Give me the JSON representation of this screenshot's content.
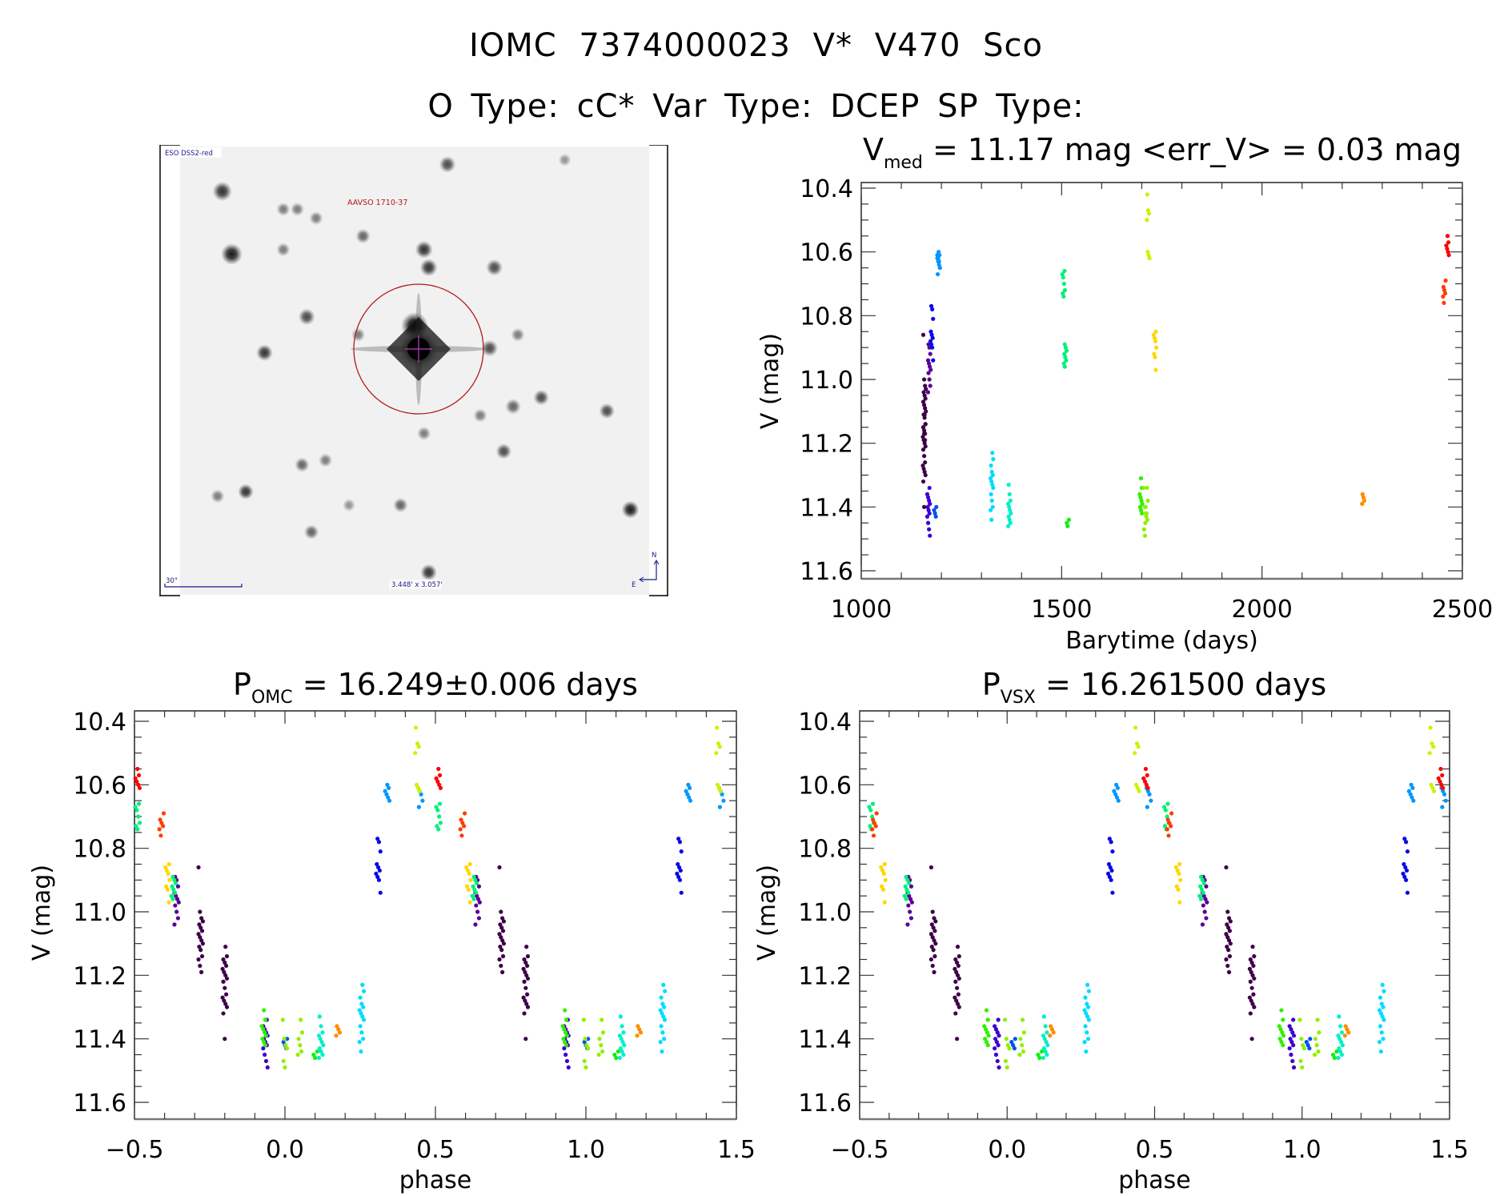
{
  "header": {
    "title": "IOMC 7374000023    V* V470 Sco",
    "subtitle": "O Type: cC*   Var Type: DCEP   SP Type:"
  },
  "finder_chart": {
    "survey_label": "ESO DSS2-red",
    "target_label": "AAVSO 1710-37",
    "scale_bar_label": "30\"",
    "field_size_label": "3.448' x 3.057'",
    "north_label": "N",
    "east_label": "E",
    "colors": {
      "annotation_blue": "#1a1a8c",
      "target_red": "#b01818",
      "crosshair": "#c040c0"
    }
  },
  "chart_data": [
    {
      "id": "lightcurve",
      "type": "scatter",
      "title_main": "V",
      "title_sub": "med",
      "title_rest": " = 11.17 mag <err_V> = 0.03 mag",
      "xlabel": "Barytime (days)",
      "ylabel": "V (mag)",
      "xlim": [
        1000,
        2500
      ],
      "ylim": [
        10.4,
        11.6
      ],
      "y_inverted": true,
      "xticks": [
        1000,
        1500,
        2000,
        2500
      ],
      "xtick_labels": [
        "1000",
        "1500",
        "2000",
        "2500"
      ],
      "yticks": [
        10.4,
        10.6,
        10.8,
        11.0,
        11.2,
        11.4,
        11.6
      ],
      "ytick_labels": [
        "10.4",
        "10.6",
        "10.8",
        "11.0",
        "11.2",
        "11.4",
        "11.6"
      ],
      "x_field": "t",
      "grid": false
    },
    {
      "id": "phase-omc",
      "type": "scatter",
      "title_main": "P",
      "title_sub": "OMC",
      "title_rest": " = 16.249±0.006 days",
      "xlabel": "phase",
      "ylabel": "V (mag)",
      "xlim": [
        -0.5,
        1.5
      ],
      "ylim": [
        10.4,
        11.6
      ],
      "y_inverted": true,
      "xticks": [
        -0.5,
        0.0,
        0.5,
        1.0,
        1.5
      ],
      "xtick_labels": [
        "−0.5",
        "0.0",
        "0.5",
        "1.0",
        "1.5"
      ],
      "yticks": [
        10.4,
        10.6,
        10.8,
        11.0,
        11.2,
        11.4,
        11.6
      ],
      "ytick_labels": [
        "10.4",
        "10.6",
        "10.8",
        "11.0",
        "11.2",
        "11.4",
        "11.6"
      ],
      "x_field": "phase_omc",
      "grid": false
    },
    {
      "id": "phase-vsx",
      "type": "scatter",
      "title_main": "P",
      "title_sub": "VSX",
      "title_rest": " = 16.261500 days",
      "xlabel": "phase",
      "ylabel": "V (mag)",
      "xlim": [
        -0.5,
        1.5
      ],
      "ylim": [
        10.4,
        11.6
      ],
      "y_inverted": true,
      "xticks": [
        -0.5,
        0.0,
        0.5,
        1.0,
        1.5
      ],
      "xtick_labels": [
        "−0.5",
        "0.0",
        "0.5",
        "1.0",
        "1.5"
      ],
      "yticks": [
        10.4,
        10.6,
        10.8,
        11.0,
        11.2,
        11.4,
        11.6
      ],
      "ytick_labels": [
        "10.4",
        "10.6",
        "10.8",
        "11.0",
        "11.2",
        "11.4",
        "11.6"
      ],
      "x_field": "phase_vsx",
      "grid": false
    }
  ],
  "observation_groups": [
    {
      "color": "#3d0048",
      "t": 1158,
      "phase_omc": 0.72,
      "phase_vsx": 0.75,
      "mags": [
        10.86,
        11.0,
        11.02,
        11.03,
        11.04,
        11.05,
        11.06,
        11.07,
        11.08,
        11.09,
        11.1,
        11.11,
        11.12,
        11.14,
        11.15,
        11.17,
        11.19
      ]
    },
    {
      "color": "#3d0048",
      "t": 1157,
      "phase_omc": 0.8,
      "phase_vsx": 0.83,
      "mags": [
        11.11,
        11.14,
        11.15,
        11.16,
        11.17,
        11.18,
        11.19,
        11.2,
        11.21,
        11.22,
        11.24,
        11.26,
        11.27,
        11.28,
        11.29,
        11.3,
        11.32,
        11.4
      ]
    },
    {
      "color": "#5a0096",
      "t": 1170,
      "phase_omc": 0.64,
      "phase_vsx": 0.67,
      "mags": [
        10.89,
        10.9,
        10.92,
        10.94,
        10.95,
        10.96,
        10.97,
        10.98,
        11.0,
        11.02,
        11.04
      ]
    },
    {
      "color": "#3c00d0",
      "t": 1168,
      "phase_omc": 0.935,
      "phase_vsx": 0.965,
      "mags": [
        11.34,
        11.36,
        11.37,
        11.38,
        11.39,
        11.4,
        11.41,
        11.42,
        11.43,
        11.45,
        11.47,
        11.49
      ]
    },
    {
      "color": "#0a0ae6",
      "t": 1176,
      "phase_omc": 0.31,
      "phase_vsx": 0.35,
      "mags": [
        10.77,
        10.78,
        10.81,
        10.85,
        10.86,
        10.87,
        10.88,
        10.89,
        10.9,
        10.94
      ]
    },
    {
      "color": "#0050f0",
      "t": 1184,
      "phase_omc": 1.0,
      "phase_vsx": 1.02,
      "mags": [
        11.4,
        11.41,
        11.42,
        11.43
      ]
    },
    {
      "color": "#0096ff",
      "t": 1193,
      "phase_omc": 0.34,
      "phase_vsx": 0.37,
      "mags": [
        10.6,
        10.61,
        10.62,
        10.63,
        10.64,
        10.65
      ]
    },
    {
      "color": "#0096ff",
      "t": 1193,
      "phase_omc": 0.45,
      "phase_vsx": 0.48,
      "mags": [
        10.61,
        10.62,
        10.63,
        10.65,
        10.67
      ]
    },
    {
      "color": "#00dcff",
      "t": 1326,
      "phase_omc": 0.255,
      "phase_vsx": 0.27,
      "mags": [
        11.23,
        11.25,
        11.27,
        11.29,
        11.3,
        11.31,
        11.32,
        11.33,
        11.34,
        11.36,
        11.38,
        11.4,
        11.41,
        11.44
      ]
    },
    {
      "color": "#00f0c8",
      "t": 1370,
      "phase_omc": 0.12,
      "phase_vsx": 0.13,
      "mags": [
        11.33,
        11.36,
        11.38,
        11.39,
        11.4,
        11.41,
        11.42,
        11.43,
        11.44,
        11.45,
        11.46
      ]
    },
    {
      "color": "#00f07a",
      "t": 1505,
      "phase_omc": 0.51,
      "phase_vsx": 0.54,
      "mags": [
        10.66,
        10.67,
        10.68,
        10.7,
        10.72,
        10.73,
        10.74
      ]
    },
    {
      "color": "#00f07a",
      "t": 1509,
      "phase_omc": 0.63,
      "phase_vsx": 0.66,
      "mags": [
        10.89,
        10.9,
        10.91,
        10.92,
        10.93,
        10.94,
        10.95,
        10.96
      ]
    },
    {
      "color": "#10f010",
      "t": 1515,
      "phase_omc": 0.1,
      "phase_vsx": 0.11,
      "mags": [
        11.44,
        11.45,
        11.46
      ]
    },
    {
      "color": "#30f000",
      "t": 1698,
      "phase_omc": 0.93,
      "phase_vsx": 0.93,
      "mags": [
        11.31,
        11.34,
        11.36,
        11.37,
        11.38,
        11.39,
        11.4,
        11.41,
        11.42
      ]
    },
    {
      "color": "#90f000",
      "t": 1708,
      "phase_omc": 0.0,
      "phase_vsx": 0.0,
      "mags": [
        11.34,
        11.4,
        11.42,
        11.43,
        11.47,
        11.49
      ]
    },
    {
      "color": "#90f000",
      "t": 1712,
      "phase_omc": 0.05,
      "phase_vsx": 0.05,
      "mags": [
        11.34,
        11.38,
        11.4,
        11.42,
        11.44,
        11.45
      ]
    },
    {
      "color": "#d2f000",
      "t": 1716,
      "phase_omc": 0.44,
      "phase_vsx": 0.44,
      "mags": [
        10.42,
        10.47,
        10.48,
        10.5,
        10.6,
        10.61,
        10.62
      ]
    },
    {
      "color": "#ffd800",
      "t": 1733,
      "phase_omc": 0.61,
      "phase_vsx": 0.58,
      "mags": [
        10.85,
        10.86,
        10.87,
        10.88,
        10.9,
        10.92,
        10.93,
        10.97
      ]
    },
    {
      "color": "#ff8c00",
      "t": 2252,
      "phase_omc": 0.175,
      "phase_vsx": 0.15,
      "mags": [
        11.36,
        11.37,
        11.38,
        11.39
      ]
    },
    {
      "color": "#ff3c00",
      "t": 2455,
      "phase_omc": 0.59,
      "phase_vsx": 0.55,
      "mags": [
        10.69,
        10.71,
        10.72,
        10.73,
        10.74,
        10.76
      ]
    },
    {
      "color": "#ff0000",
      "t": 2463,
      "phase_omc": 0.51,
      "phase_vsx": 0.47,
      "mags": [
        10.55,
        10.57,
        10.58,
        10.59,
        10.6,
        10.61
      ]
    }
  ],
  "stars": [
    [
      0.5,
      0.4,
      1.0,
      1.0
    ],
    [
      0.09,
      0.1,
      0.6,
      0.8
    ],
    [
      0.11,
      0.24,
      0.7,
      0.9
    ],
    [
      0.57,
      0.04,
      0.45,
      0.7
    ],
    [
      0.52,
      0.23,
      0.5,
      0.8
    ],
    [
      0.53,
      0.27,
      0.5,
      0.8
    ],
    [
      0.67,
      0.27,
      0.45,
      0.7
    ],
    [
      0.27,
      0.38,
      0.45,
      0.7
    ],
    [
      0.38,
      0.42,
      0.3,
      0.5
    ],
    [
      0.66,
      0.45,
      0.45,
      0.7
    ],
    [
      0.18,
      0.46,
      0.45,
      0.8
    ],
    [
      0.72,
      0.42,
      0.3,
      0.5
    ],
    [
      0.77,
      0.56,
      0.4,
      0.7
    ],
    [
      0.71,
      0.58,
      0.4,
      0.6
    ],
    [
      0.64,
      0.6,
      0.3,
      0.5
    ],
    [
      0.69,
      0.68,
      0.4,
      0.7
    ],
    [
      0.52,
      0.64,
      0.3,
      0.5
    ],
    [
      0.91,
      0.59,
      0.4,
      0.7
    ],
    [
      0.26,
      0.71,
      0.35,
      0.6
    ],
    [
      0.14,
      0.77,
      0.4,
      0.8
    ],
    [
      0.31,
      0.7,
      0.3,
      0.5
    ],
    [
      0.28,
      0.86,
      0.35,
      0.6
    ],
    [
      0.08,
      0.78,
      0.3,
      0.5
    ],
    [
      0.47,
      0.8,
      0.35,
      0.6
    ],
    [
      0.36,
      0.8,
      0.25,
      0.4
    ],
    [
      0.53,
      0.95,
      0.45,
      0.8
    ],
    [
      0.96,
      0.81,
      0.5,
      0.9
    ],
    [
      0.22,
      0.14,
      0.3,
      0.5
    ],
    [
      0.25,
      0.14,
      0.3,
      0.5
    ],
    [
      0.29,
      0.16,
      0.3,
      0.5
    ],
    [
      0.22,
      0.23,
      0.3,
      0.5
    ],
    [
      0.82,
      0.03,
      0.25,
      0.4
    ],
    [
      0.39,
      0.2,
      0.35,
      0.6
    ]
  ]
}
